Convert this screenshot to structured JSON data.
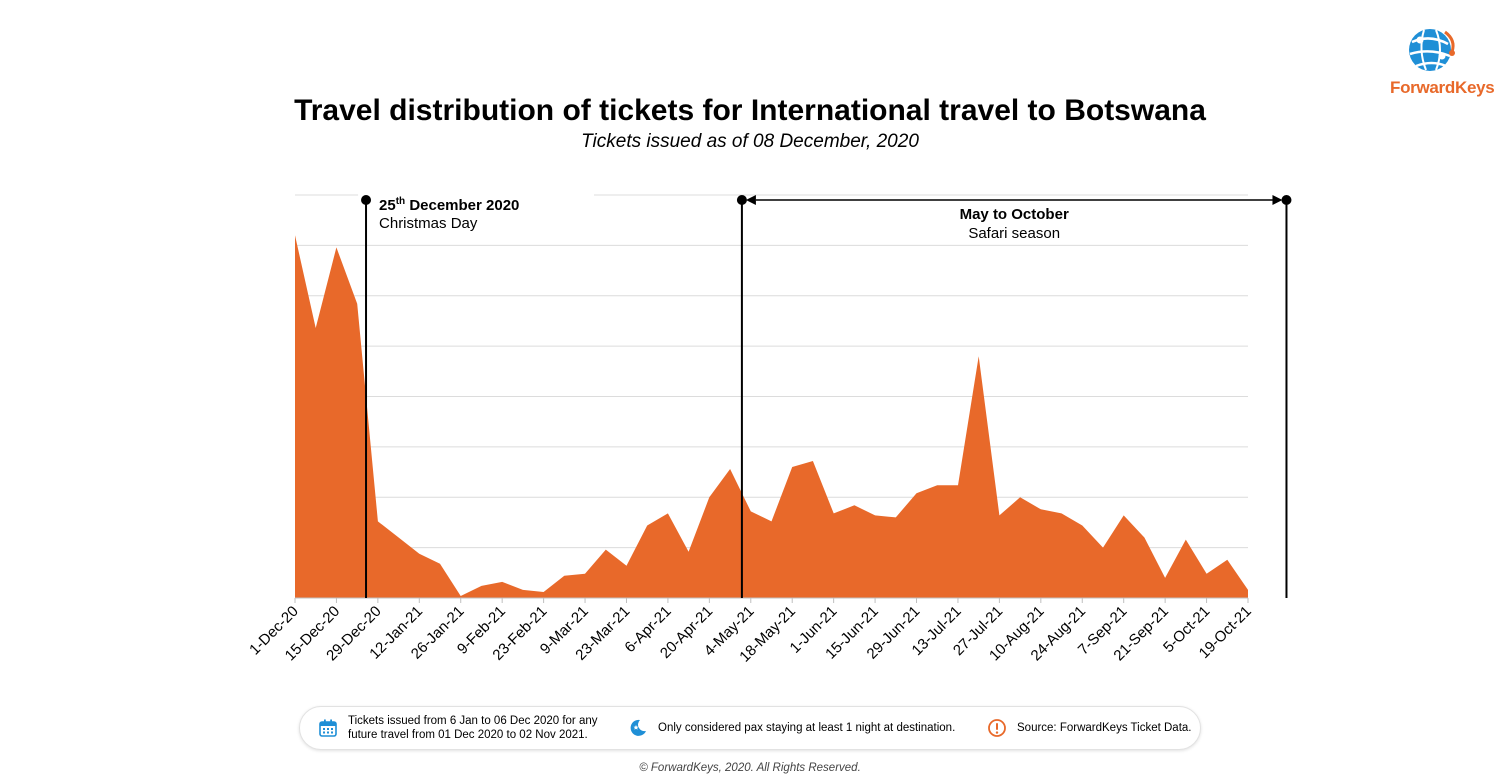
{
  "brand": {
    "name": "ForwardKeys",
    "color": "#e8692a",
    "globe_color": "#1f8fd6"
  },
  "header": {
    "title": "Travel distribution of tickets for International travel to Botswana",
    "subtitle": "Tickets issued as of 08 December, 2020"
  },
  "chart_data": {
    "type": "area",
    "color": "#e8692a",
    "grid": true,
    "y_axis_labels": "hidden",
    "ylim": [
      0,
      100
    ],
    "x_tick_labels": [
      "1-Dec-20",
      "15-Dec-20",
      "29-Dec-20",
      "12-Jan-21",
      "26-Jan-21",
      "9-Feb-21",
      "23-Feb-21",
      "9-Mar-21",
      "23-Mar-21",
      "6-Apr-21",
      "20-Apr-21",
      "4-May-21",
      "18-May-21",
      "1-Jun-21",
      "15-Jun-21",
      "29-Jun-21",
      "13-Jul-21",
      "27-Jul-21",
      "10-Aug-21",
      "24-Aug-21",
      "7-Sep-21",
      "21-Sep-21",
      "5-Oct-21",
      "19-Oct-21"
    ],
    "x": [
      "1-Dec-20",
      "8-Dec-20",
      "15-Dec-20",
      "22-Dec-20",
      "29-Dec-20",
      "5-Jan-21",
      "12-Jan-21",
      "19-Jan-21",
      "26-Jan-21",
      "2-Feb-21",
      "9-Feb-21",
      "16-Feb-21",
      "23-Feb-21",
      "2-Mar-21",
      "9-Mar-21",
      "16-Mar-21",
      "23-Mar-21",
      "30-Mar-21",
      "6-Apr-21",
      "13-Apr-21",
      "20-Apr-21",
      "27-Apr-21",
      "4-May-21",
      "11-May-21",
      "18-May-21",
      "25-May-21",
      "1-Jun-21",
      "8-Jun-21",
      "15-Jun-21",
      "22-Jun-21",
      "29-Jun-21",
      "6-Jul-21",
      "13-Jul-21",
      "20-Jul-21",
      "27-Jul-21",
      "3-Aug-21",
      "10-Aug-21",
      "17-Aug-21",
      "24-Aug-21",
      "31-Aug-21",
      "7-Sep-21",
      "14-Sep-21",
      "21-Sep-21",
      "28-Sep-21",
      "5-Oct-21",
      "12-Oct-21",
      "19-Oct-21"
    ],
    "values": [
      90,
      67,
      87,
      73,
      19,
      15,
      11,
      8.5,
      0.5,
      3,
      4,
      2,
      1.5,
      5.5,
      6,
      12,
      8,
      18,
      21,
      11.5,
      25,
      32,
      21.5,
      19,
      32.5,
      34,
      21,
      23,
      20.5,
      20,
      26,
      28,
      28,
      60,
      20.5,
      25,
      22,
      21,
      18,
      12.5,
      20.5,
      15,
      5,
      14.5,
      6,
      9.5,
      2
    ],
    "annotations": [
      {
        "date": "25-Dec-20",
        "label_sup_prefix": "25",
        "label_sup": "th",
        "label_bold": " December 2020",
        "label": "Christmas Day"
      },
      {
        "range": [
          "1-May-21",
          "1-Nov-21"
        ],
        "label_bold": "May to October",
        "label": "Safari season"
      }
    ]
  },
  "footer": {
    "note1_line1": "Tickets issued from 6 Jan to 06 Dec 2020 for any",
    "note1_line2": "future travel from 01 Dec 2020 to 02 Nov 2021.",
    "note1_icon": "calendar-icon",
    "note2": "Only considered pax staying at least 1 night at destination.",
    "note2_icon": "moon-icon",
    "note3": "Source: ForwardKeys Ticket Data.",
    "note3_icon": "exclamation-icon",
    "icon_blue": "#1f8fd6",
    "icon_orange": "#e8692a",
    "copyright": "© ForwardKeys, 2020. All Rights Reserved."
  }
}
